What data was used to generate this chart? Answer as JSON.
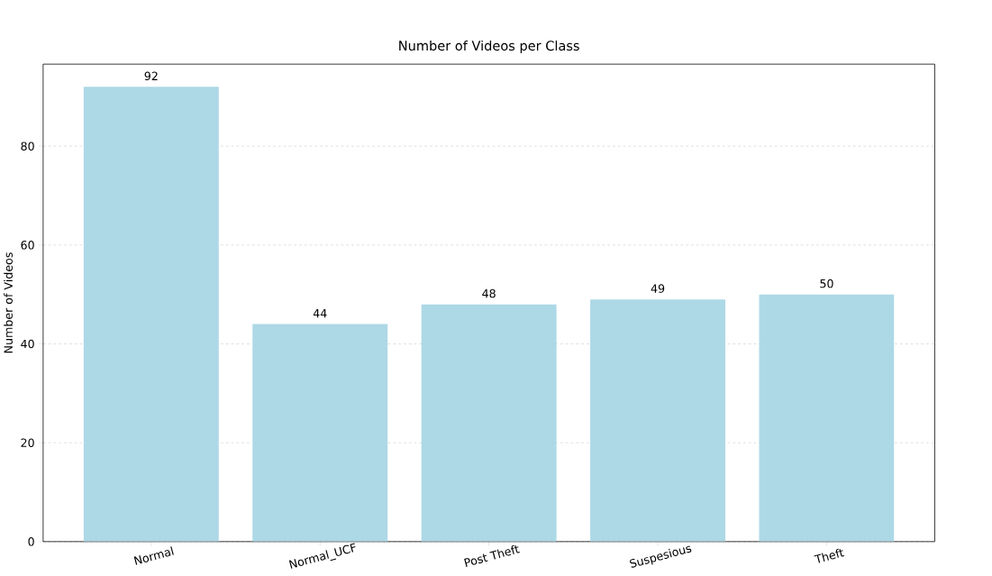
{
  "chart_data": {
    "type": "bar",
    "title": "Number of Videos per Class",
    "ylabel": "Number of Videos",
    "categories": [
      "Normal",
      "Normal_UCF",
      "Post Theft",
      "Suspesious",
      "Theft"
    ],
    "values": [
      92,
      44,
      48,
      49,
      50
    ],
    "color": "#add8e6",
    "ylim": [
      0,
      96.6
    ],
    "yticks": [
      0,
      20,
      40,
      60,
      80
    ],
    "grid": "y",
    "data_labels": true
  }
}
